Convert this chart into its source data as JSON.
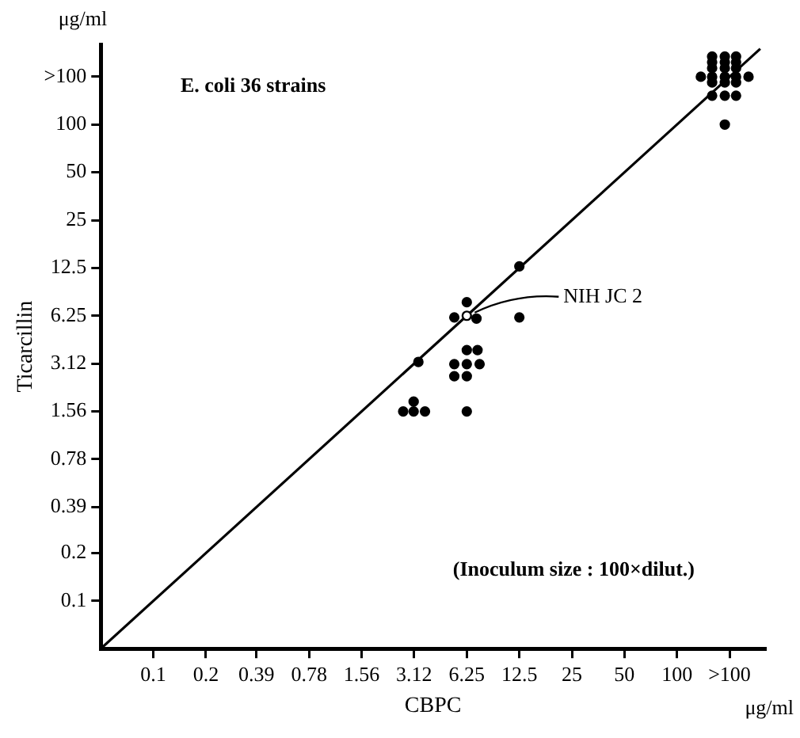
{
  "chart_data": {
    "type": "scatter",
    "xlabel": "CBPC",
    "ylabel": "Ticarcillin",
    "annotations": [
      "E. coli 36 strains",
      "(Inoculum size : 100×dilut.)",
      "μg/ml",
      "μg/ml",
      {
        "text": "NIH JC 2",
        "x": 6.25,
        "y": 6.25
      }
    ],
    "xlim": [
      0.05,
      320
    ],
    "ylim": [
      0.05,
      320
    ],
    "xticks": [
      0.1,
      0.2,
      0.39,
      0.78,
      1.56,
      3.12,
      6.25,
      12.5,
      25,
      50,
      100,
      {
        "value": 200,
        "label": ">100"
      }
    ],
    "yticks": [
      0.1,
      0.2,
      0.39,
      0.78,
      1.56,
      3.12,
      6.25,
      12.5,
      25,
      50,
      100,
      {
        "value": 200,
        "label": ">100"
      }
    ],
    "log": "xy",
    "grid": false,
    "legend": false,
    "marker": "circle",
    "series": [
      {
        "color": "#000000",
        "x": [
          159,
          188,
          218,
          159,
          188,
          218,
          159,
          188,
          218,
          137,
          159,
          188,
          218,
          257,
          159,
          188,
          218,
          159,
          188,
          218,
          188,
          12.5,
          6.25,
          5.3,
          7.1,
          12.5,
          3.3,
          6.25,
          7.2,
          5.3,
          6.25,
          7.4,
          5.3,
          6.25,
          3.1,
          2.7,
          3.1,
          3.6,
          6.25
        ],
        "values": [
          268,
          268,
          268,
          247,
          247,
          247,
          227,
          227,
          227,
          200,
          200,
          200,
          200,
          200,
          184,
          184,
          184,
          152,
          152,
          152,
          100,
          12.8,
          7.6,
          6.1,
          6.0,
          6.1,
          3.2,
          3.8,
          3.8,
          3.1,
          3.1,
          3.1,
          2.6,
          2.6,
          1.8,
          1.56,
          1.56,
          1.56,
          1.56
        ]
      },
      {
        "color": "#ffffff",
        "x": [
          6.25
        ],
        "values": [
          6.25
        ]
      },
      {
        "type": "line",
        "color": "#000000",
        "marker": "none",
        "line_style": "solid",
        "x": [
          0.05,
          300
        ],
        "values": [
          0.05,
          300
        ]
      }
    ]
  }
}
